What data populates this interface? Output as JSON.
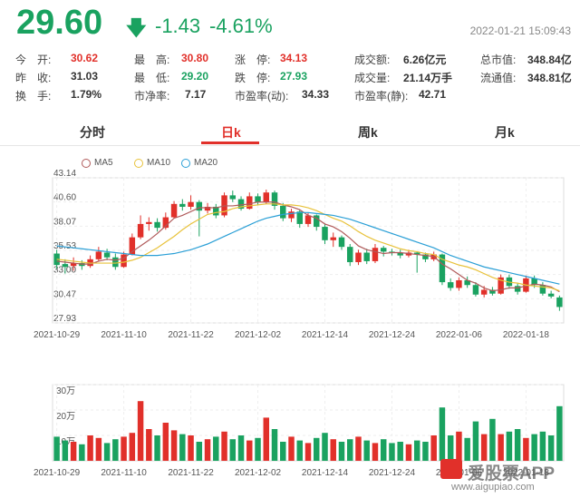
{
  "quote": {
    "price": "29.60",
    "change": "-1.43",
    "change_pct": "-4.61%",
    "timestamp": "2022-01-21 15:09:43",
    "direction_icon": "down-arrow-icon",
    "accent_down": "#1aa260",
    "accent_up": "#e1302a"
  },
  "stats": {
    "open_label": "今　开:",
    "open": "30.62",
    "prev_close_label": "昨　收:",
    "prev_close": "31.03",
    "turnover_label": "换　手:",
    "turnover": "1.79%",
    "high_label": "最　高:",
    "high": "30.80",
    "low_label": "最　低:",
    "low": "29.20",
    "pb_label": "市净率:",
    "pb": "7.17",
    "limit_up_label": "涨　停:",
    "limit_up": "34.13",
    "limit_down_label": "跌　停:",
    "limit_down": "27.93",
    "pe_dyn_label": "市盈率(动):",
    "pe_dyn": "34.33",
    "amount_label": "成交额:",
    "amount": "6.26亿元",
    "volume_label": "成交量:",
    "volume": "21.14万手",
    "pe_static_label": "市盈率(静):",
    "pe_static": "42.71",
    "mktcap_label": "总市值:",
    "mktcap": "348.84亿",
    "float_cap_label": "流通值:",
    "float_cap": "348.81亿"
  },
  "tabs": [
    {
      "label": "分时",
      "active": false
    },
    {
      "label": "日k",
      "active": true
    },
    {
      "label": "周k",
      "active": false
    },
    {
      "label": "月k",
      "active": false
    }
  ],
  "legend": [
    {
      "name": "MA5",
      "color": "#b05a5a"
    },
    {
      "name": "MA10",
      "color": "#e8c23a"
    },
    {
      "name": "MA20",
      "color": "#2a9fd6"
    }
  ],
  "watermark": {
    "brand": "爱股票APP",
    "url": "www.aigupiao.com"
  },
  "chart_data": [
    {
      "type": "candlestick",
      "ylim": [
        27.93,
        43.14
      ],
      "yticks": [
        "43.14",
        "40.60",
        "38.07",
        "35.53",
        "33.00",
        "30.47",
        "27.93"
      ],
      "xticks": [
        "2021-10-29",
        "2021-11-10",
        "2021-11-22",
        "2021-12-02",
        "2021-12-14",
        "2021-12-24",
        "2022-01-06",
        "2022-01-18"
      ],
      "xtick_index": [
        0,
        8,
        16,
        24,
        32,
        40,
        48,
        56
      ],
      "candles": [
        {
          "o": 35.2,
          "c": 34.0,
          "h": 35.6,
          "l": 33.6
        },
        {
          "o": 34.1,
          "c": 33.8,
          "h": 34.6,
          "l": 33.1
        },
        {
          "o": 33.9,
          "c": 34.2,
          "h": 34.8,
          "l": 33.4
        },
        {
          "o": 34.2,
          "c": 33.9,
          "h": 34.5,
          "l": 33.5
        },
        {
          "o": 33.9,
          "c": 34.6,
          "h": 35.0,
          "l": 33.7
        },
        {
          "o": 34.6,
          "c": 35.4,
          "h": 35.9,
          "l": 34.4
        },
        {
          "o": 35.3,
          "c": 34.8,
          "h": 35.7,
          "l": 34.5
        },
        {
          "o": 34.8,
          "c": 33.8,
          "h": 35.2,
          "l": 33.5
        },
        {
          "o": 33.8,
          "c": 35.1,
          "h": 35.4,
          "l": 33.7
        },
        {
          "o": 35.1,
          "c": 36.9,
          "h": 37.3,
          "l": 35.0
        },
        {
          "o": 36.9,
          "c": 38.3,
          "h": 39.2,
          "l": 36.7
        },
        {
          "o": 38.3,
          "c": 38.5,
          "h": 39.0,
          "l": 37.6
        },
        {
          "o": 38.5,
          "c": 37.9,
          "h": 38.9,
          "l": 37.5
        },
        {
          "o": 37.9,
          "c": 39.0,
          "h": 39.5,
          "l": 37.7
        },
        {
          "o": 39.0,
          "c": 40.4,
          "h": 40.7,
          "l": 38.9
        },
        {
          "o": 40.4,
          "c": 40.1,
          "h": 40.9,
          "l": 39.7
        },
        {
          "o": 40.1,
          "c": 40.6,
          "h": 41.3,
          "l": 39.8
        },
        {
          "o": 40.6,
          "c": 39.7,
          "h": 40.8,
          "l": 37.0
        },
        {
          "o": 39.7,
          "c": 40.1,
          "h": 40.5,
          "l": 39.4
        },
        {
          "o": 40.1,
          "c": 39.2,
          "h": 40.4,
          "l": 38.9
        },
        {
          "o": 39.2,
          "c": 41.3,
          "h": 41.6,
          "l": 39.0
        },
        {
          "o": 41.3,
          "c": 40.9,
          "h": 41.8,
          "l": 40.6
        },
        {
          "o": 40.9,
          "c": 39.9,
          "h": 41.2,
          "l": 39.7
        },
        {
          "o": 39.9,
          "c": 41.2,
          "h": 41.6,
          "l": 39.8
        },
        {
          "o": 41.2,
          "c": 40.6,
          "h": 41.5,
          "l": 40.3
        },
        {
          "o": 40.6,
          "c": 41.6,
          "h": 41.9,
          "l": 40.4
        },
        {
          "o": 41.6,
          "c": 40.2,
          "h": 41.8,
          "l": 39.8
        },
        {
          "o": 40.2,
          "c": 38.9,
          "h": 40.5,
          "l": 38.6
        },
        {
          "o": 38.9,
          "c": 39.6,
          "h": 39.9,
          "l": 38.5
        },
        {
          "o": 39.6,
          "c": 38.3,
          "h": 39.8,
          "l": 37.9
        },
        {
          "o": 38.3,
          "c": 39.2,
          "h": 39.5,
          "l": 38.0
        },
        {
          "o": 39.2,
          "c": 38.0,
          "h": 39.3,
          "l": 37.6
        },
        {
          "o": 38.0,
          "c": 36.6,
          "h": 38.3,
          "l": 36.2
        },
        {
          "o": 36.6,
          "c": 36.9,
          "h": 37.4,
          "l": 35.9
        },
        {
          "o": 36.9,
          "c": 35.9,
          "h": 37.1,
          "l": 35.6
        },
        {
          "o": 35.9,
          "c": 34.3,
          "h": 36.2,
          "l": 33.9
        },
        {
          "o": 34.3,
          "c": 35.3,
          "h": 35.6,
          "l": 34.0
        },
        {
          "o": 35.3,
          "c": 34.4,
          "h": 35.7,
          "l": 34.1
        },
        {
          "o": 34.4,
          "c": 35.8,
          "h": 36.2,
          "l": 34.2
        },
        {
          "o": 35.8,
          "c": 35.4,
          "h": 36.0,
          "l": 34.9
        },
        {
          "o": 35.4,
          "c": 35.3,
          "h": 35.7,
          "l": 35.0
        },
        {
          "o": 35.3,
          "c": 35.0,
          "h": 35.6,
          "l": 34.7
        },
        {
          "o": 35.0,
          "c": 35.3,
          "h": 35.6,
          "l": 34.8
        },
        {
          "o": 35.3,
          "c": 35.1,
          "h": 35.4,
          "l": 33.2
        },
        {
          "o": 35.1,
          "c": 34.6,
          "h": 35.3,
          "l": 34.3
        },
        {
          "o": 34.6,
          "c": 35.1,
          "h": 35.4,
          "l": 34.4
        },
        {
          "o": 35.1,
          "c": 32.2,
          "h": 35.2,
          "l": 31.9
        },
        {
          "o": 32.2,
          "c": 31.6,
          "h": 32.6,
          "l": 31.3
        },
        {
          "o": 31.6,
          "c": 32.4,
          "h": 32.7,
          "l": 31.3
        },
        {
          "o": 32.4,
          "c": 31.9,
          "h": 32.8,
          "l": 31.6
        },
        {
          "o": 31.9,
          "c": 30.9,
          "h": 32.2,
          "l": 30.7
        },
        {
          "o": 30.9,
          "c": 31.4,
          "h": 31.8,
          "l": 30.6
        },
        {
          "o": 31.4,
          "c": 31.0,
          "h": 31.7,
          "l": 30.8
        },
        {
          "o": 31.0,
          "c": 32.7,
          "h": 33.0,
          "l": 30.9
        },
        {
          "o": 32.7,
          "c": 31.8,
          "h": 33.0,
          "l": 31.5
        },
        {
          "o": 31.8,
          "c": 31.2,
          "h": 32.1,
          "l": 30.9
        },
        {
          "o": 31.2,
          "c": 32.6,
          "h": 32.9,
          "l": 31.1
        },
        {
          "o": 32.6,
          "c": 31.9,
          "h": 32.9,
          "l": 31.6
        },
        {
          "o": 31.9,
          "c": 31.0,
          "h": 32.2,
          "l": 30.8
        },
        {
          "o": 31.0,
          "c": 30.7,
          "h": 31.3,
          "l": 30.5
        },
        {
          "o": 30.6,
          "c": 29.6,
          "h": 30.8,
          "l": 29.2
        }
      ],
      "ma5": [
        34.4,
        34.3,
        34.2,
        34.1,
        34.1,
        34.4,
        34.6,
        34.5,
        34.7,
        35.4,
        36.0,
        36.6,
        37.3,
        38.1,
        38.9,
        39.2,
        39.6,
        40.0,
        40.0,
        40.0,
        40.2,
        40.2,
        40.3,
        40.4,
        40.6,
        40.6,
        40.6,
        40.3,
        40.1,
        39.8,
        39.2,
        38.9,
        38.3,
        38.0,
        37.5,
        36.8,
        36.0,
        35.6,
        35.4,
        35.2,
        35.3,
        35.3,
        35.2,
        35.1,
        35.0,
        34.9,
        34.1,
        33.6,
        33.0,
        32.4,
        32.1,
        31.6,
        31.3,
        31.4,
        31.6,
        31.6,
        31.8,
        32.0,
        31.9,
        31.7,
        31.2
      ],
      "ma10": [
        34.6,
        34.5,
        34.4,
        34.3,
        34.2,
        34.2,
        34.2,
        34.2,
        34.3,
        34.5,
        34.8,
        35.3,
        35.8,
        36.4,
        37.0,
        37.7,
        38.3,
        38.8,
        39.3,
        39.5,
        39.6,
        39.9,
        40.1,
        40.2,
        40.3,
        40.4,
        40.4,
        40.3,
        40.3,
        40.2,
        40.0,
        39.7,
        39.3,
        38.9,
        38.6,
        38.1,
        37.5,
        37.0,
        36.6,
        36.3,
        36.0,
        35.7,
        35.5,
        35.4,
        35.2,
        35.1,
        34.6,
        34.3,
        34.0,
        33.8,
        33.5,
        33.1,
        32.7,
        32.4,
        32.2,
        32.1,
        31.9,
        31.8,
        31.7,
        31.6,
        31.3
      ],
      "ma20": [
        36.0,
        35.9,
        35.8,
        35.7,
        35.6,
        35.5,
        35.4,
        35.3,
        35.2,
        35.1,
        35.0,
        35.0,
        35.0,
        35.1,
        35.2,
        35.4,
        35.6,
        35.9,
        36.2,
        36.6,
        37.0,
        37.4,
        37.8,
        38.2,
        38.6,
        38.9,
        39.1,
        39.3,
        39.4,
        39.5,
        39.5,
        39.4,
        39.3,
        39.2,
        39.0,
        38.8,
        38.5,
        38.2,
        37.9,
        37.6,
        37.3,
        37.0,
        36.7,
        36.4,
        36.1,
        35.8,
        35.4,
        35.0,
        34.7,
        34.4,
        34.1,
        33.8,
        33.6,
        33.4,
        33.2,
        33.0,
        32.8,
        32.6,
        32.4,
        32.2,
        32.0
      ]
    },
    {
      "type": "bar",
      "title": "",
      "ylim": [
        0,
        30
      ],
      "yticks": [
        "30万",
        "20万",
        "10万"
      ],
      "xticks": [
        "2021-10-29",
        "2021-11-10",
        "2021-11-22",
        "2021-12-02",
        "2021-12-14",
        "2021-12-24",
        "2022-01-06",
        "2022-01-18"
      ],
      "xtick_index": [
        0,
        8,
        16,
        24,
        32,
        40,
        48,
        56
      ],
      "unit": "万",
      "values": [
        9.5,
        8.0,
        7.5,
        6.5,
        10.0,
        9.0,
        7.0,
        8.5,
        9.5,
        11.0,
        23.5,
        12.5,
        10.0,
        15.0,
        12.0,
        10.5,
        10.0,
        7.5,
        8.5,
        9.5,
        11.5,
        8.5,
        10.0,
        8.0,
        9.0,
        17.0,
        12.5,
        7.5,
        9.5,
        8.0,
        7.0,
        9.0,
        11.0,
        8.5,
        7.5,
        8.5,
        9.5,
        8.0,
        7.0,
        8.5,
        7.0,
        7.5,
        6.5,
        8.0,
        7.5,
        10.0,
        21.0,
        10.0,
        11.5,
        9.0,
        15.5,
        10.5,
        16.5,
        10.5,
        11.5,
        12.5,
        9.0,
        10.5,
        11.5,
        10.0,
        21.5
      ]
    }
  ]
}
